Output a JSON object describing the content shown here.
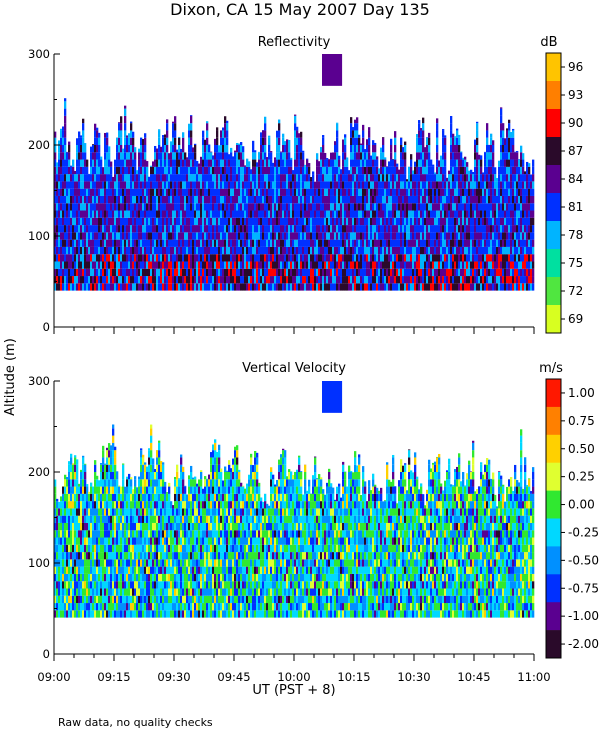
{
  "figure": {
    "title": "Dixon, CA 15 May 2007  Day 135",
    "ylabel": "Altitude (m)",
    "xlabel": "UT  (PST + 8)",
    "footnote": "Raw data, no quality checks"
  },
  "chart_data": [
    {
      "type": "heatmap",
      "title": "Reflectivity",
      "colorbar_label": "dB",
      "ylim": [
        0,
        300
      ],
      "yticks": [
        0,
        100,
        200,
        300
      ],
      "ytick_labels": [
        "0",
        "100",
        "200",
        "300"
      ],
      "xlim_ut": [
        "09:00",
        "11:00"
      ],
      "xticks": [
        "09:00",
        "09:15",
        "09:30",
        "09:45",
        "10:00",
        "10:15",
        "10:30",
        "10:45",
        "11:00"
      ],
      "data_bottom_m": 40,
      "colorbar": {
        "levels": [
          "96",
          "93",
          "90",
          "87",
          "84",
          "81",
          "78",
          "75",
          "72",
          "69"
        ],
        "colors": [
          "#ffc400",
          "#ff7f00",
          "#ff0000",
          "#2a0a2a",
          "#5a0090",
          "#0030ff",
          "#00b4ff",
          "#00e0a0",
          "#50e640",
          "#d8ff20"
        ]
      },
      "grid": false
    },
    {
      "type": "heatmap",
      "title": "Vertical Velocity",
      "colorbar_label": "m/s",
      "ylim": [
        0,
        300
      ],
      "yticks": [
        0,
        100,
        200,
        300
      ],
      "ytick_labels": [
        "0",
        "100",
        "200",
        "300"
      ],
      "xlim_ut": [
        "09:00",
        "11:00"
      ],
      "xticks": [
        "09:00",
        "09:15",
        "09:30",
        "09:45",
        "10:00",
        "10:15",
        "10:30",
        "10:45",
        "11:00"
      ],
      "data_bottom_m": 40,
      "colorbar": {
        "levels": [
          "1.00",
          "0.75",
          "0.50",
          "0.25",
          "0.00",
          "-0.25",
          "-0.50",
          "-0.75",
          "-1.00",
          "-2.00"
        ],
        "colors": [
          "#ff1800",
          "#ff8000",
          "#ffd000",
          "#e0ff30",
          "#30e830",
          "#00d8ff",
          "#0090ff",
          "#0030ff",
          "#5a0090",
          "#2a0a2a"
        ]
      },
      "grid": false
    }
  ]
}
